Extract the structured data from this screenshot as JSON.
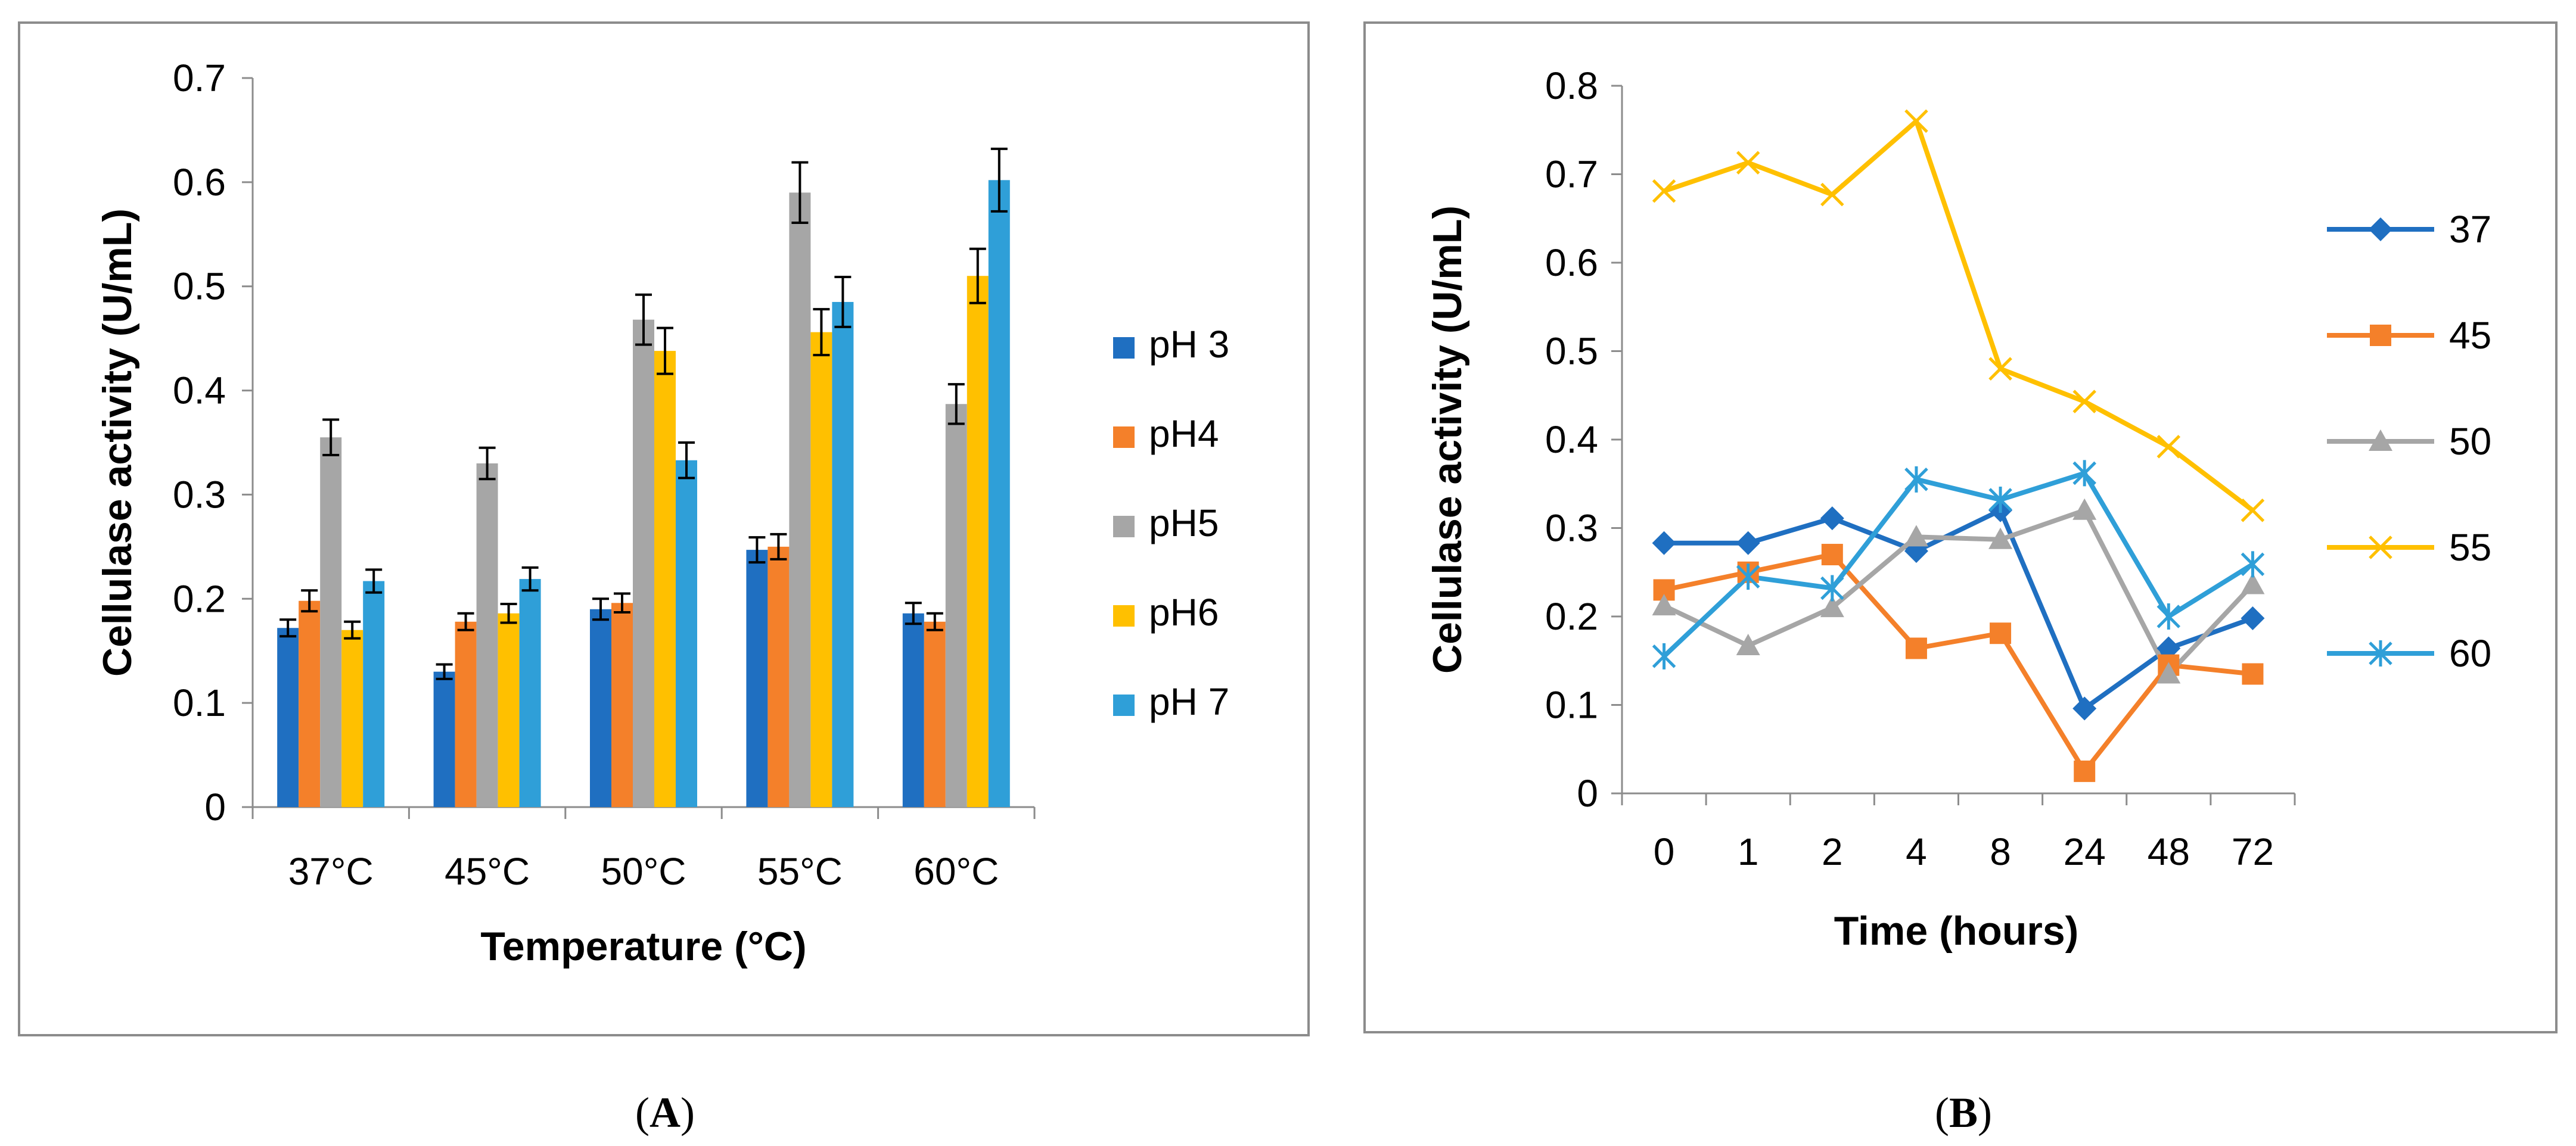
{
  "panels": {
    "a_label": "A",
    "b_label": "B"
  },
  "chart_data": [
    {
      "type": "bar",
      "panel": "A",
      "xlabel": "Temperature (°C)",
      "ylabel": "Cellulase activity (U/mL)",
      "ylim": [
        0,
        0.7
      ],
      "yticks": [
        "0",
        "0.1",
        "0.2",
        "0.3",
        "0.4",
        "0.5",
        "0.6",
        "0.7"
      ],
      "categories": [
        "37°C",
        "45°C",
        "50°C",
        "55°C",
        "60°C"
      ],
      "legend_position": "right",
      "series": [
        {
          "name": "pH 3",
          "color": "#1f6fc1",
          "values": [
            0.172,
            0.13,
            0.19,
            0.247,
            0.186
          ],
          "errors": [
            0.008,
            0.007,
            0.01,
            0.012,
            0.01
          ]
        },
        {
          "name": "pH4",
          "color": "#f4802a",
          "values": [
            0.198,
            0.178,
            0.196,
            0.25,
            0.178
          ],
          "errors": [
            0.01,
            0.008,
            0.009,
            0.012,
            0.008
          ]
        },
        {
          "name": "pH5",
          "color": "#a6a6a6",
          "values": [
            0.355,
            0.33,
            0.468,
            0.59,
            0.387
          ],
          "errors": [
            0.017,
            0.015,
            0.024,
            0.029,
            0.019
          ]
        },
        {
          "name": "pH6",
          "color": "#ffc000",
          "values": [
            0.17,
            0.186,
            0.438,
            0.456,
            0.51
          ],
          "errors": [
            0.008,
            0.009,
            0.022,
            0.022,
            0.026
          ]
        },
        {
          "name": "pH 7",
          "color": "#2f9fd8",
          "values": [
            0.217,
            0.219,
            0.333,
            0.485,
            0.602
          ],
          "errors": [
            0.011,
            0.011,
            0.017,
            0.024,
            0.03
          ]
        }
      ]
    },
    {
      "type": "line",
      "panel": "B",
      "xlabel": "Time (hours)",
      "ylabel": "Cellulase activity (U/mL)",
      "ylim": [
        0,
        0.8
      ],
      "yticks": [
        "0",
        "0.1",
        "0.2",
        "0.3",
        "0.4",
        "0.5",
        "0.6",
        "0.7",
        "0.8"
      ],
      "categories": [
        "0",
        "1",
        "2",
        "4",
        "8",
        "24",
        "48",
        "72"
      ],
      "legend_position": "right",
      "series": [
        {
          "name": "37",
          "color": "#1f6fc1",
          "marker": "diamond",
          "values": [
            0.283,
            0.283,
            0.311,
            0.274,
            0.32,
            0.096,
            0.164,
            0.198
          ]
        },
        {
          "name": "45",
          "color": "#f4802a",
          "marker": "square",
          "values": [
            0.23,
            0.25,
            0.27,
            0.164,
            0.181,
            0.025,
            0.145,
            0.135
          ]
        },
        {
          "name": "50",
          "color": "#a6a6a6",
          "marker": "triangle",
          "values": [
            0.212,
            0.167,
            0.21,
            0.29,
            0.287,
            0.32,
            0.135,
            0.236
          ]
        },
        {
          "name": "55",
          "color": "#ffc000",
          "marker": "x",
          "values": [
            0.681,
            0.713,
            0.677,
            0.76,
            0.48,
            0.443,
            0.392,
            0.32
          ]
        },
        {
          "name": "60",
          "color": "#2f9fd8",
          "marker": "star",
          "values": [
            0.155,
            0.245,
            0.232,
            0.355,
            0.332,
            0.362,
            0.2,
            0.259
          ]
        }
      ]
    }
  ]
}
